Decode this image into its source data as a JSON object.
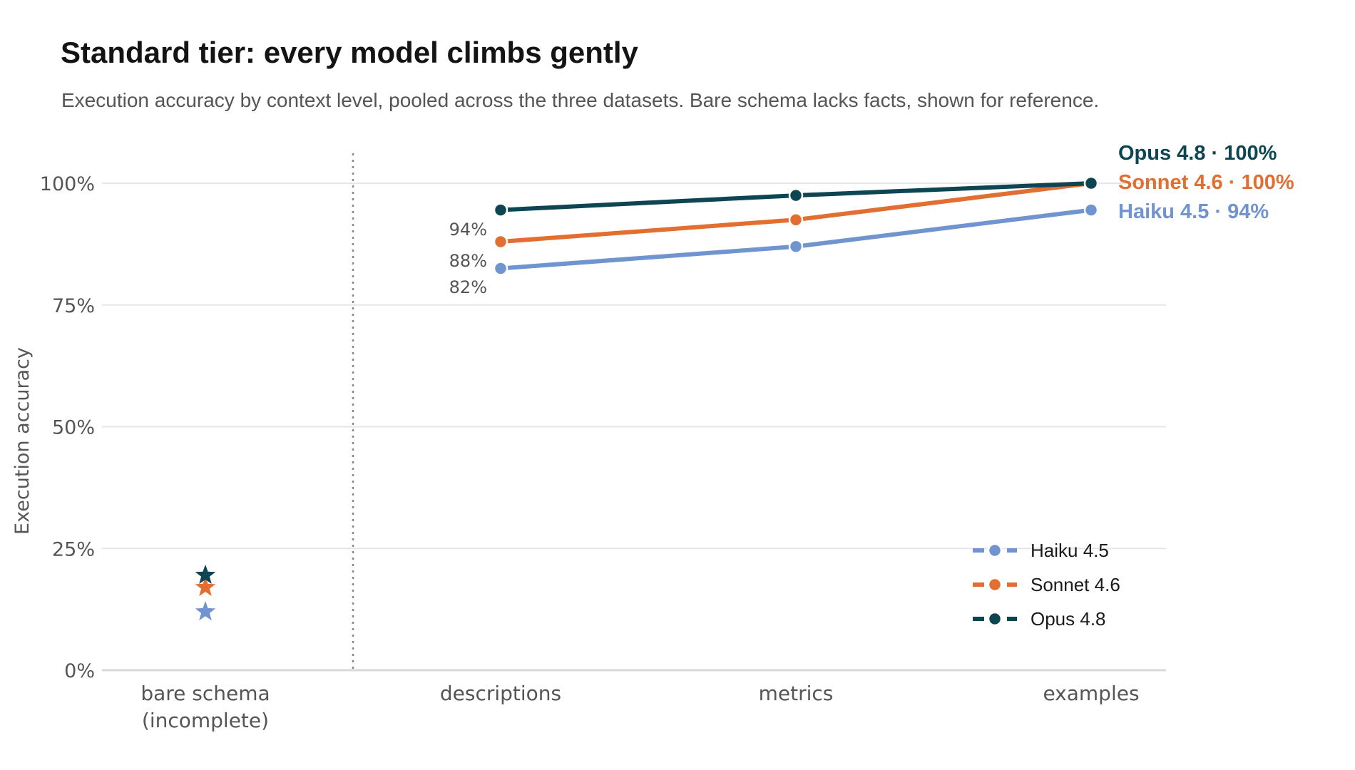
{
  "chart_data": {
    "type": "line",
    "title": "Standard tier: every model climbs gently",
    "subtitle": "Execution accuracy by context level, pooled across the three datasets. Bare schema lacks facts, shown for reference.",
    "ylabel": "Execution accuracy",
    "xlabel": "",
    "ylim": [
      0,
      100
    ],
    "y_ticks": [
      {
        "value": 0,
        "label": "0%"
      },
      {
        "value": 25,
        "label": "25%"
      },
      {
        "value": 50,
        "label": "50%"
      },
      {
        "value": 75,
        "label": "75%"
      },
      {
        "value": 100,
        "label": "100%"
      }
    ],
    "grid": true,
    "categories": [
      "bare schema\n(incomplete)",
      "descriptions",
      "metrics",
      "examples"
    ],
    "reference_category": "bare schema\n(incomplete)",
    "reference_marker": "star",
    "legend_position": "bottom-right",
    "series": [
      {
        "name": "Haiku 4.5",
        "color": "#7094cf",
        "values": [
          12,
          82.5,
          87,
          94.5
        ],
        "start_label": "82%",
        "end_label": "94%"
      },
      {
        "name": "Sonnet 4.6",
        "color": "#e26f31",
        "values": [
          17,
          88,
          92.5,
          100
        ],
        "start_label": "88%",
        "end_label": "100%"
      },
      {
        "name": "Opus 4.8",
        "color": "#0d4652",
        "values": [
          19.5,
          94.5,
          97.5,
          100
        ],
        "start_label": "94%",
        "end_label": "100%"
      }
    ]
  },
  "colors": {
    "grid": "#e6e6e6",
    "axis": "#d8d8d8",
    "divider": "#888888",
    "text_muted": "#555555"
  },
  "end_label_separator": "·"
}
